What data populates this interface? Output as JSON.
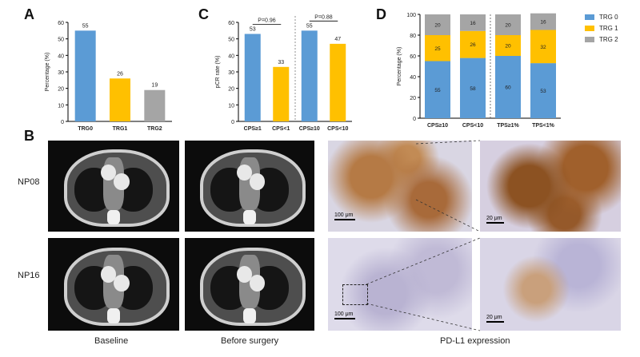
{
  "panels": {
    "a": "A",
    "b": "B",
    "c": "C",
    "d": "D"
  },
  "chart_data": [
    {
      "id": "A",
      "type": "bar",
      "ylabel": "Percentage (%)",
      "ylim": [
        0,
        60
      ],
      "yticks": [
        0,
        10,
        20,
        30,
        40,
        50,
        60
      ],
      "categories": [
        "TRG0",
        "TRG1",
        "TRG2"
      ],
      "values": [
        55,
        26,
        19
      ],
      "colors": [
        "#5b9bd5",
        "#ffc000",
        "#a5a5a5"
      ]
    },
    {
      "id": "C",
      "type": "bar",
      "ylabel": "pCR rate (%)",
      "ylim": [
        0,
        60
      ],
      "yticks": [
        0,
        10,
        20,
        30,
        40,
        50,
        60
      ],
      "categories": [
        "CPS≥1",
        "CPS<1",
        "CPS≥10",
        "CPS<10"
      ],
      "values": [
        53,
        33,
        55,
        47
      ],
      "colors": [
        "#5b9bd5",
        "#ffc000",
        "#5b9bd5",
        "#ffc000"
      ],
      "annotations": [
        "P=0.96",
        "P=0.88"
      ]
    },
    {
      "id": "D",
      "type": "bar",
      "stacked": true,
      "ylabel": "Percentage (%)",
      "ylim": [
        0,
        100
      ],
      "yticks": [
        0,
        20,
        40,
        60,
        80,
        100
      ],
      "categories": [
        "CPS≥10",
        "CPS<10",
        "TPS≥1%",
        "TPS<1%"
      ],
      "series": [
        {
          "name": "TRG 0",
          "color": "#5b9bd5",
          "values": [
            55,
            58,
            60,
            53
          ]
        },
        {
          "name": "TRG 1",
          "color": "#ffc000",
          "values": [
            25,
            26,
            20,
            32
          ]
        },
        {
          "name": "TRG 2",
          "color": "#a5a5a5",
          "values": [
            20,
            16,
            20,
            16
          ]
        }
      ],
      "legend": "right"
    }
  ],
  "panel_b": {
    "rows": [
      "NP08",
      "NP16"
    ],
    "captions": [
      "Baseline",
      "Before surgery",
      "PD-L1 expression"
    ],
    "scale_low": "100 μm",
    "scale_high": "20 μm"
  }
}
